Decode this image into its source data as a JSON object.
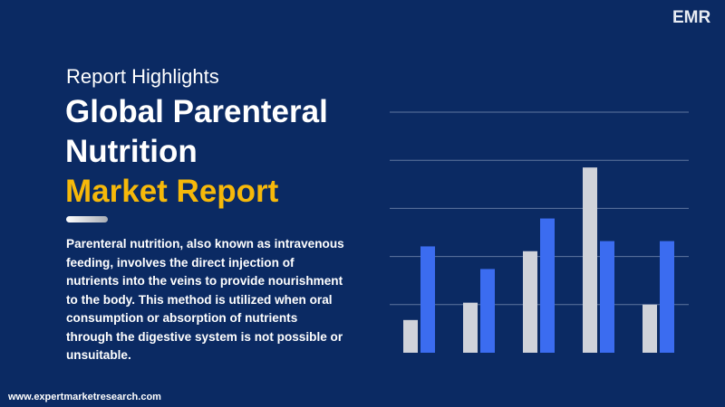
{
  "brand": {
    "logo": "EMR"
  },
  "header": {
    "kicker": "Report Highlights",
    "title_lines": [
      "Global Parenteral",
      "Nutrition"
    ],
    "highlight": "Market Report"
  },
  "body": {
    "lines": [
      "Parenteral nutrition, also known as intravenous",
      "feeding, involves the direct injection of",
      "nutrients into the veins to provide nourishment",
      "to the body. This method is utilized when oral",
      "consumption or absorption of nutrients",
      "through the digestive system is not possible or",
      "unsuitable."
    ]
  },
  "footer": {
    "url": "www.expertmarketresearch.com"
  },
  "chart_data": {
    "type": "bar",
    "categories": [
      null,
      null,
      null,
      null,
      null
    ],
    "series": [
      {
        "color": "#d0d3da",
        "values": [
          0.68,
          1.04,
          2.11,
          3.85,
          1.0
        ]
      },
      {
        "color": "#3b6cf0",
        "values": [
          2.21,
          1.74,
          2.79,
          2.32,
          2.32
        ]
      }
    ],
    "ylim": [
      0,
      5
    ],
    "yticks": [
      1,
      2,
      3,
      4,
      5
    ],
    "grid": true
  }
}
